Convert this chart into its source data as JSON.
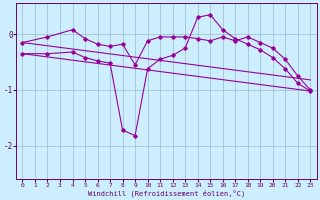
{
  "xlabel": "Windchill (Refroidissement éolien,°C)",
  "bg_color": "#cceeff",
  "line_color": "#990099",
  "grid_color": "#99bbcc",
  "axis_color": "#660066",
  "xlim": [
    -0.5,
    23.5
  ],
  "ylim": [
    -2.6,
    0.55
  ],
  "yticks": [
    0,
    -1,
    -2
  ],
  "xticks": [
    0,
    1,
    2,
    3,
    4,
    5,
    6,
    7,
    8,
    9,
    10,
    11,
    12,
    13,
    14,
    15,
    16,
    17,
    18,
    19,
    20,
    21,
    22,
    23
  ],
  "line1_x": [
    0,
    2,
    4,
    5,
    6,
    7,
    8,
    9,
    10,
    11,
    12,
    13,
    14,
    15,
    16,
    17,
    18,
    19,
    20,
    21,
    22,
    23
  ],
  "line1_y": [
    -0.15,
    -0.05,
    0.08,
    -0.08,
    -0.18,
    -0.22,
    -0.18,
    -0.55,
    -0.12,
    -0.05,
    -0.05,
    -0.05,
    -0.08,
    -0.12,
    -0.05,
    -0.12,
    -0.05,
    -0.15,
    -0.25,
    -0.45,
    -0.75,
    -1.0
  ],
  "line2_x": [
    0,
    2,
    4,
    5,
    6,
    7,
    8,
    9,
    10,
    11,
    12,
    13,
    14,
    15,
    16,
    17,
    18,
    19,
    20,
    21,
    22,
    23
  ],
  "line2_y": [
    -0.35,
    -0.35,
    -0.32,
    -0.42,
    -0.48,
    -0.52,
    -1.72,
    -1.82,
    -0.62,
    -0.45,
    -0.38,
    -0.25,
    0.3,
    0.35,
    0.08,
    -0.08,
    -0.18,
    -0.28,
    -0.42,
    -0.62,
    -0.88,
    -1.02
  ],
  "line3_x": [
    0,
    23
  ],
  "line3_y": [
    -0.15,
    -0.82
  ],
  "line4_x": [
    0,
    23
  ],
  "line4_y": [
    -0.35,
    -1.02
  ]
}
